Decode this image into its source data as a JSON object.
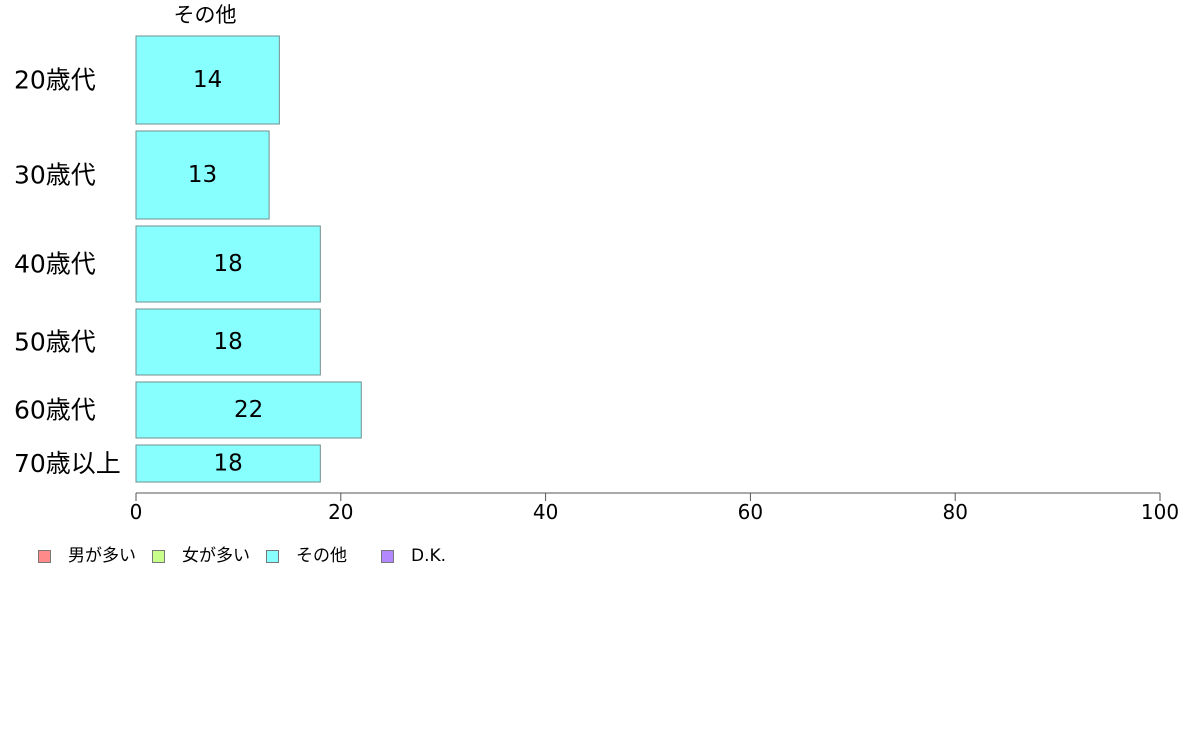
{
  "chart_data": {
    "type": "bar",
    "orientation": "horizontal",
    "stacked": true,
    "column_header": "その他",
    "categories": [
      "20歳代",
      "30歳代",
      "40歳代",
      "50歳代",
      "60歳代",
      "70歳以上"
    ],
    "series": [
      {
        "name": "男が多い",
        "color": "#ff8a8a",
        "values": [
          0,
          0,
          0,
          0,
          0,
          0
        ]
      },
      {
        "name": "女が多い",
        "color": "#c8ff8a",
        "values": [
          0,
          0,
          0,
          0,
          0,
          0
        ]
      },
      {
        "name": "その他",
        "color": "#88ffff",
        "values": [
          14,
          13,
          18,
          18,
          22,
          18
        ]
      },
      {
        "name": "D.K.",
        "color": "#b388ff",
        "values": [
          0,
          0,
          0,
          0,
          0,
          0
        ]
      }
    ],
    "data_labels": [
      "14",
      "13",
      "18",
      "18",
      "22",
      "18"
    ],
    "xlim": [
      0,
      100
    ],
    "xticks": [
      0,
      20,
      40,
      60,
      80,
      100
    ],
    "grid": false,
    "legend_position": "bottom-left"
  }
}
